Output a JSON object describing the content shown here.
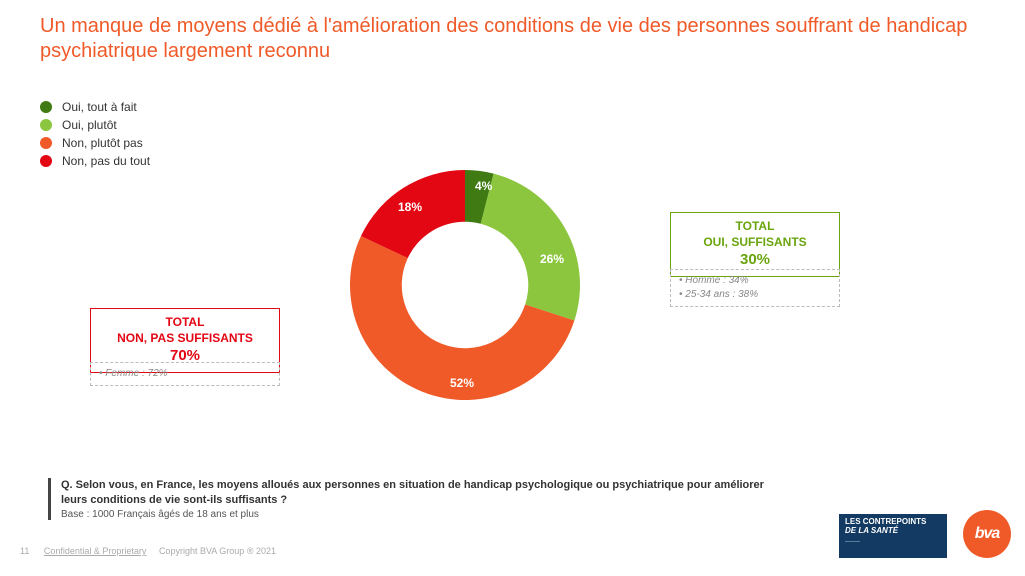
{
  "title": "Un manque de moyens dédié à l'amélioration des conditions de vie des personnes souffrant de handicap psychiatrique largement reconnu",
  "legend": {
    "items": [
      {
        "label": "Oui, tout à fait",
        "color": "#3f7a12"
      },
      {
        "label": "Oui, plutôt",
        "color": "#8cc63f"
      },
      {
        "label": "Non, plutôt pas",
        "color": "#f05a28"
      },
      {
        "label": "Non, pas du tout",
        "color": "#e30613"
      }
    ]
  },
  "chart": {
    "type": "donut",
    "inner_radius_pct": 55,
    "background_color": "#ffffff",
    "slices": [
      {
        "label": "4%",
        "value": 4,
        "color": "#3f7a12"
      },
      {
        "label": "26%",
        "value": 26,
        "color": "#8cc63f"
      },
      {
        "label": "52%",
        "value": 52,
        "color": "#f05a28"
      },
      {
        "label": "18%",
        "value": 18,
        "color": "#e30613"
      }
    ],
    "label_fontsize": 12,
    "label_color": "#ffffff"
  },
  "callout_left": {
    "line1": "TOTAL",
    "line2": "NON, PAS SUFFISANTS",
    "value": "70%",
    "border_color": "#e30613",
    "text_color": "#e30613",
    "sub": "• Femme : 72%"
  },
  "callout_right": {
    "line1": "TOTAL",
    "line2": "OUI, SUFFISANTS",
    "value": "30%",
    "border_color": "#6aa50e",
    "text_color": "#6aa50e",
    "sub1": "• Homme : 34%",
    "sub2": "• 25-34 ans : 38%"
  },
  "question": {
    "text": "Q. Selon vous, en France, les moyens alloués aux personnes en situation de handicap psychologique ou psychiatrique pour améliorer leurs conditions de vie sont-ils suffisants ?",
    "base": "Base : 1000 Français âgés de 18 ans et plus"
  },
  "footer": {
    "page": "11",
    "confidential": "Confidential & Proprietary",
    "copyright": "Copyright BVA Group ® 2021"
  },
  "logo_box": {
    "line1": "LES CONTREPOINTS",
    "line2": "DE LA SANTÉ"
  },
  "bva_logo": "bva"
}
